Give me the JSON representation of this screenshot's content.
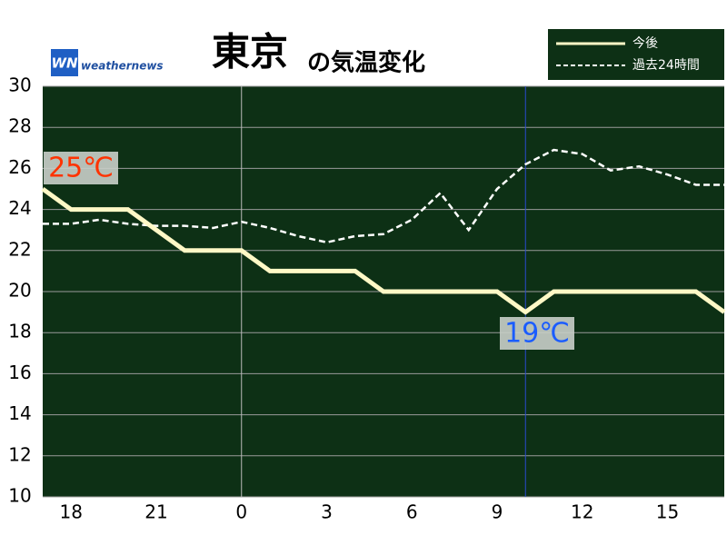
{
  "chart_data": {
    "type": "line",
    "title": "東京",
    "title_suffix": "の気温変化",
    "logo": {
      "mark": "WN",
      "text": "weathernews"
    },
    "categories": [
      null,
      "18",
      null,
      null,
      "21",
      null,
      null,
      "0",
      null,
      null,
      "3",
      null,
      null,
      "6",
      null,
      null,
      "9",
      null,
      null,
      "12",
      null,
      null,
      "15",
      null,
      null
    ],
    "series": [
      {
        "name": "今後",
        "color": "#fff8c6",
        "dashed": false,
        "values": [
          25,
          24,
          24,
          24,
          23,
          22,
          22,
          22,
          21,
          21,
          21,
          21,
          20,
          20,
          20,
          20,
          20,
          19,
          20,
          20,
          20,
          20,
          20,
          20,
          19
        ]
      },
      {
        "name": "過去24時間",
        "color": "#ffffff",
        "dashed": true,
        "values": [
          23.3,
          23.3,
          23.5,
          23.3,
          23.2,
          23.2,
          23.1,
          23.4,
          23.1,
          22.7,
          22.4,
          22.7,
          22.8,
          23.5,
          24.8,
          23.0,
          25.0,
          26.2,
          26.9,
          26.7,
          25.9,
          26.1,
          25.7,
          25.2,
          25.2
        ]
      }
    ],
    "annotations": [
      {
        "text": "25℃",
        "color": "#ff3300"
      },
      {
        "text": "19℃",
        "color": "#1a5cff"
      }
    ],
    "ylim": [
      10,
      30
    ],
    "yticks": [
      10,
      12,
      14,
      16,
      18,
      20,
      22,
      24,
      26,
      28,
      30
    ],
    "grid": true,
    "background": "#0d3015"
  }
}
